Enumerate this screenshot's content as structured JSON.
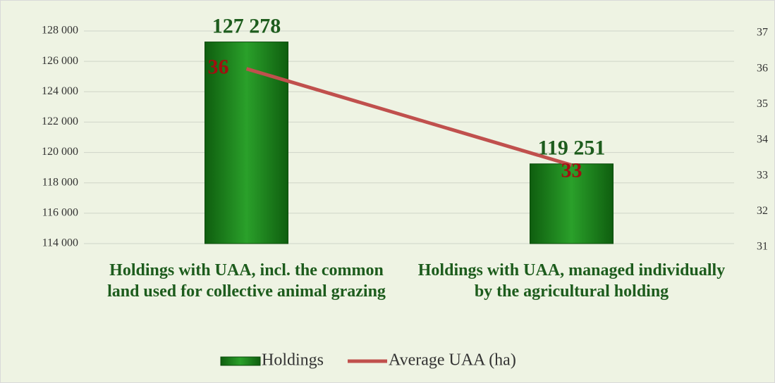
{
  "chart_data": {
    "type": "bar-line",
    "categories": [
      "Holdings with UAA, incl. the common land used for collective animal grazing",
      "Holdings with UAA, managed individually by the agricultural holding"
    ],
    "series": [
      {
        "name": "Holdings",
        "type": "bar",
        "color": "#1f8a1f",
        "values": [
          127278,
          119251
        ],
        "value_labels": [
          "127 278",
          "119 251"
        ]
      },
      {
        "name": "Average UAA (ha)",
        "type": "line",
        "axis": "y2",
        "color": "#c0504d",
        "values": [
          36,
          33.3
        ],
        "value_labels": [
          "36",
          "33"
        ]
      }
    ],
    "ylim": [
      114000,
      128000
    ],
    "yticks": [
      {
        "value": 114000,
        "label": "114 000"
      },
      {
        "value": 116000,
        "label": "116 000"
      },
      {
        "value": 118000,
        "label": "118 000"
      },
      {
        "value": 120000,
        "label": "120 000"
      },
      {
        "value": 122000,
        "label": "122 000"
      },
      {
        "value": 124000,
        "label": "124 000"
      },
      {
        "value": 126000,
        "label": "126 000"
      },
      {
        "value": 128000,
        "label": "128 000"
      }
    ],
    "y2lim": [
      31,
      37
    ],
    "y2ticks": [
      31,
      32,
      33,
      34,
      35,
      36,
      37
    ],
    "grid": true,
    "legend": "bottom"
  }
}
